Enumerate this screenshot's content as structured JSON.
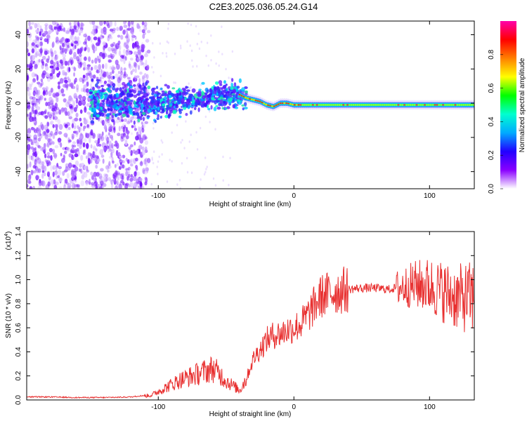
{
  "title": "C2E3.2025.036.05.24.G14",
  "chart_data": [
    {
      "type": "heatmap",
      "xlabel": "Height of straight line (km)",
      "ylabel": "Frequency (Hz)",
      "xlim": [
        -197,
        133
      ],
      "ylim": [
        -50,
        48
      ],
      "xticks": [
        -100,
        0,
        100
      ],
      "yticks": [
        -40,
        -20,
        0,
        20,
        40
      ],
      "colorbar": {
        "label": "Normalized spectral amplitude",
        "range": [
          0.0,
          1.0
        ],
        "ticks": [
          "0.0",
          "0.2",
          "0.4",
          "0.6",
          "0.8"
        ],
        "colors": [
          "#ffffff",
          "#8a00ff",
          "#2200ff",
          "#00aaff",
          "#00ffd0",
          "#00ff00",
          "#ffff00",
          "#ff8000",
          "#ff0000",
          "#ff00aa"
        ]
      },
      "ridge": {
        "x": [
          -100,
          -90,
          -80,
          -70,
          -60,
          -50,
          -40,
          -35,
          -30,
          -25,
          -20,
          -15,
          -10,
          -5,
          0,
          20,
          40,
          60,
          80,
          100,
          120,
          133
        ],
        "frequency_hz": [
          0,
          1,
          2,
          2,
          4,
          4,
          5,
          3,
          2,
          1,
          -1,
          -2,
          0,
          0,
          -1,
          -1,
          -1,
          -1,
          -1,
          -1,
          -1,
          -1
        ]
      }
    },
    {
      "type": "line",
      "xlabel": "Height of straight line (km)",
      "ylabel": "SNR (10 * v/v)",
      "scale_label": "(x10",
      "scale_exp": "4",
      "xlim": [
        -197,
        133
      ],
      "ylim": [
        0,
        1.4
      ],
      "xticks": [
        -100,
        0,
        100
      ],
      "yticks": [
        "0.0",
        "0.2",
        "0.4",
        "0.6",
        "0.8",
        "1.0",
        "1.2",
        "1.4"
      ],
      "series": [
        {
          "color": "#e83030",
          "x": [
            -197,
            -180,
            -160,
            -140,
            -120,
            -105,
            -95,
            -85,
            -75,
            -65,
            -60,
            -55,
            -50,
            -45,
            -40,
            -35,
            -30,
            -25,
            -20,
            -15,
            -10,
            -5,
            0,
            5,
            10,
            15,
            20,
            30,
            40,
            50,
            60,
            70,
            80,
            90,
            100,
            110,
            120,
            133
          ],
          "y": [
            0.02,
            0.02,
            0.015,
            0.015,
            0.02,
            0.04,
            0.1,
            0.16,
            0.2,
            0.24,
            0.26,
            0.22,
            0.16,
            0.12,
            0.08,
            0.18,
            0.34,
            0.42,
            0.5,
            0.54,
            0.55,
            0.58,
            0.6,
            0.63,
            0.7,
            0.78,
            0.86,
            0.9,
            0.92,
            0.93,
            0.93,
            0.92,
            0.94,
            0.96,
            0.95,
            0.9,
            0.85,
            0.85
          ]
        }
      ]
    }
  ]
}
